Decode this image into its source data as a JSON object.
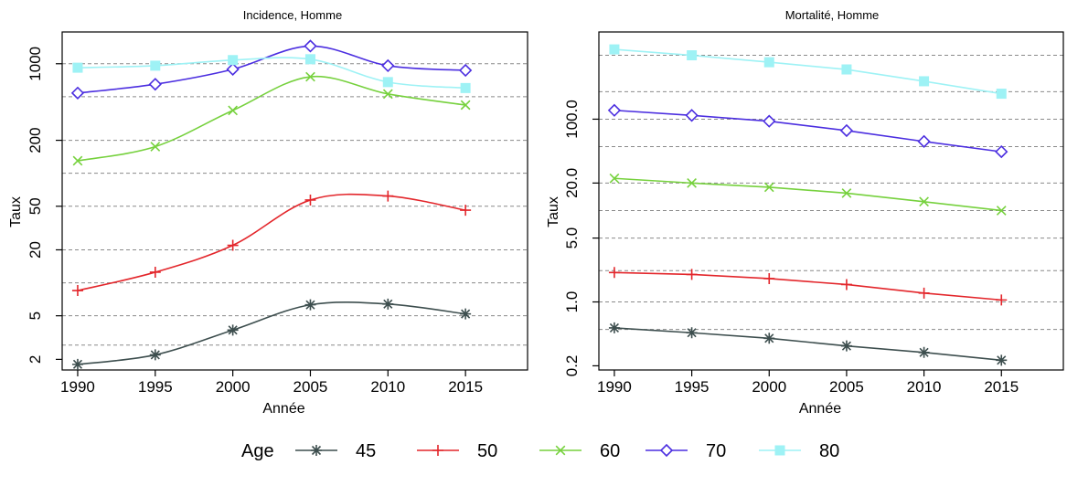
{
  "chart_data": [
    {
      "type": "line",
      "title": "Incidence, Homme",
      "xlabel": "Année",
      "ylabel": "Taux",
      "yscale": "log",
      "x": [
        1990,
        1995,
        2000,
        2005,
        2010,
        2015
      ],
      "xlim": [
        1989,
        2019
      ],
      "ylim": [
        1.6,
        1950
      ],
      "yticks": [
        2,
        5,
        20,
        50,
        200,
        1000
      ],
      "ytick_labels": [
        "2",
        "5",
        "20",
        "50",
        "200",
        "1000"
      ],
      "grid_values": [
        2.7,
        5,
        10,
        20,
        50,
        100,
        200,
        500,
        1000
      ],
      "series": [
        {
          "name": "45",
          "values": [
            1.8,
            2.2,
            3.7,
            6.3,
            6.4,
            5.2
          ]
        },
        {
          "name": "50",
          "values": [
            8.5,
            12.5,
            22,
            57,
            62,
            46
          ]
        },
        {
          "name": "60",
          "values": [
            130,
            175,
            375,
            760,
            530,
            420
          ]
        },
        {
          "name": "70",
          "values": [
            540,
            650,
            890,
            1450,
            960,
            870
          ]
        },
        {
          "name": "80",
          "values": [
            920,
            960,
            1080,
            1100,
            680,
            600
          ]
        }
      ]
    },
    {
      "type": "line",
      "title": "Mortalité, Homme",
      "xlabel": "Année",
      "ylabel": "Taux",
      "yscale": "log",
      "x": [
        1990,
        1995,
        2000,
        2005,
        2010,
        2015
      ],
      "xlim": [
        1989,
        2019
      ],
      "ylim": [
        0.18,
        900
      ],
      "yticks": [
        0.2,
        1.0,
        5.0,
        20.0,
        100.0
      ],
      "ytick_labels": [
        "0.2",
        "1.0",
        "5.0",
        "20.0",
        "100.0"
      ],
      "grid_values": [
        0.5,
        1.0,
        2.2,
        5.0,
        10.0,
        20.0,
        50.0,
        100.0,
        200.0,
        500.0
      ],
      "series": [
        {
          "name": "45",
          "values": [
            0.52,
            0.46,
            0.4,
            0.33,
            0.28,
            0.23
          ]
        },
        {
          "name": "50",
          "values": [
            2.1,
            2.0,
            1.8,
            1.55,
            1.25,
            1.05
          ]
        },
        {
          "name": "60",
          "values": [
            22.5,
            20.0,
            18.0,
            15.5,
            12.5,
            10.0
          ]
        },
        {
          "name": "70",
          "values": [
            125,
            110,
            95,
            75,
            57,
            44
          ]
        },
        {
          "name": "80",
          "values": [
            580,
            500,
            420,
            350,
            260,
            190
          ]
        }
      ]
    }
  ],
  "legend": {
    "title": "Age",
    "position": "bottom",
    "entries": [
      {
        "label": "45",
        "color": "#3d4e4e",
        "marker": "asterisk"
      },
      {
        "label": "50",
        "color": "#e3262b",
        "marker": "plus"
      },
      {
        "label": "60",
        "color": "#76d13d",
        "marker": "x"
      },
      {
        "label": "70",
        "color": "#4b2ee0",
        "marker": "diamond"
      },
      {
        "label": "80",
        "color": "#9ef2f5",
        "marker": "square"
      }
    ]
  }
}
